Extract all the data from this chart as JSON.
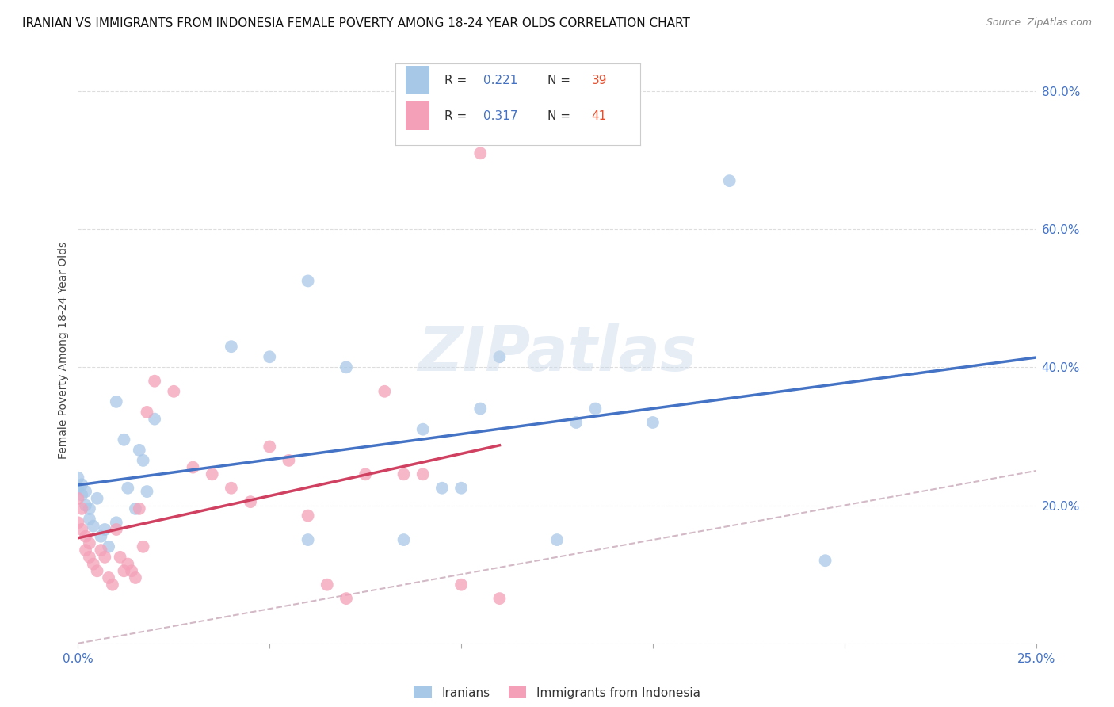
{
  "title": "IRANIAN VS IMMIGRANTS FROM INDONESIA FEMALE POVERTY AMONG 18-24 YEAR OLDS CORRELATION CHART",
  "source": "Source: ZipAtlas.com",
  "ylabel": "Female Poverty Among 18-24 Year Olds",
  "xlim": [
    0.0,
    0.25
  ],
  "ylim": [
    0.0,
    0.85
  ],
  "iranians_R": 0.221,
  "iranians_N": 39,
  "indonesia_R": 0.317,
  "indonesia_N": 41,
  "iranians_color": "#a8c8e8",
  "indonesia_color": "#f4a0b8",
  "iranians_line_color": "#4472c4",
  "indonesia_line_color": "#d04060",
  "diagonal_color": "#c8a8b8",
  "iranians_x": [
    0.0,
    0.0,
    0.001,
    0.001,
    0.002,
    0.002,
    0.003,
    0.003,
    0.004,
    0.005,
    0.006,
    0.007,
    0.008,
    0.01,
    0.01,
    0.012,
    0.013,
    0.015,
    0.016,
    0.017,
    0.018,
    0.02,
    0.04,
    0.05,
    0.06,
    0.07,
    0.09,
    0.095,
    0.1,
    0.11,
    0.13,
    0.15,
    0.17,
    0.195,
    0.125,
    0.06,
    0.085,
    0.105,
    0.135
  ],
  "iranians_y": [
    0.225,
    0.24,
    0.215,
    0.23,
    0.2,
    0.22,
    0.18,
    0.195,
    0.17,
    0.21,
    0.155,
    0.165,
    0.14,
    0.175,
    0.35,
    0.295,
    0.225,
    0.195,
    0.28,
    0.265,
    0.22,
    0.325,
    0.43,
    0.415,
    0.525,
    0.4,
    0.31,
    0.225,
    0.225,
    0.415,
    0.32,
    0.32,
    0.67,
    0.12,
    0.15,
    0.15,
    0.15,
    0.34,
    0.34
  ],
  "indonesia_x": [
    0.0,
    0.0,
    0.001,
    0.001,
    0.002,
    0.002,
    0.003,
    0.003,
    0.004,
    0.005,
    0.006,
    0.007,
    0.008,
    0.009,
    0.01,
    0.011,
    0.012,
    0.013,
    0.014,
    0.015,
    0.016,
    0.017,
    0.018,
    0.02,
    0.025,
    0.03,
    0.035,
    0.04,
    0.045,
    0.05,
    0.055,
    0.06,
    0.065,
    0.07,
    0.075,
    0.08,
    0.085,
    0.09,
    0.1,
    0.105,
    0.11
  ],
  "indonesia_y": [
    0.21,
    0.175,
    0.195,
    0.165,
    0.155,
    0.135,
    0.125,
    0.145,
    0.115,
    0.105,
    0.135,
    0.125,
    0.095,
    0.085,
    0.165,
    0.125,
    0.105,
    0.115,
    0.105,
    0.095,
    0.195,
    0.14,
    0.335,
    0.38,
    0.365,
    0.255,
    0.245,
    0.225,
    0.205,
    0.285,
    0.265,
    0.185,
    0.085,
    0.065,
    0.245,
    0.365,
    0.245,
    0.245,
    0.085,
    0.71,
    0.065
  ],
  "background_color": "#ffffff",
  "grid_color": "#dddddd",
  "title_fontsize": 11,
  "axis_label_fontsize": 10,
  "tick_fontsize": 11,
  "source_fontsize": 9
}
